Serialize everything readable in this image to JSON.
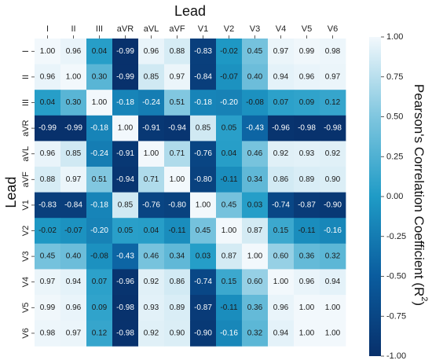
{
  "chart_data": {
    "type": "heatmap",
    "x_title": "Lead",
    "y_title": "Lead",
    "x_tick_labels": [
      "I",
      "II",
      "III",
      "aVR",
      "aVL",
      "aVF",
      "V1",
      "V2",
      "V3",
      "V4",
      "V5",
      "V6"
    ],
    "y_tick_labels": [
      "I",
      "II",
      "III",
      "aVR",
      "aVL",
      "aVF",
      "V1",
      "V2",
      "V3",
      "V4",
      "V5",
      "V6"
    ],
    "values": [
      [
        1.0,
        0.96,
        0.04,
        -0.99,
        0.96,
        0.88,
        -0.83,
        -0.02,
        0.45,
        0.97,
        0.99,
        0.98
      ],
      [
        0.96,
        1.0,
        0.3,
        -0.99,
        0.85,
        0.97,
        -0.84,
        -0.07,
        0.4,
        0.94,
        0.96,
        0.97
      ],
      [
        0.04,
        0.3,
        1.0,
        -0.18,
        -0.24,
        0.51,
        -0.18,
        -0.2,
        -0.08,
        0.07,
        0.09,
        0.12
      ],
      [
        -0.99,
        -0.99,
        -0.18,
        1.0,
        -0.91,
        -0.94,
        0.85,
        0.05,
        -0.43,
        -0.96,
        -0.98,
        -0.98
      ],
      [
        0.96,
        0.85,
        -0.24,
        -0.91,
        1.0,
        0.71,
        -0.76,
        0.04,
        0.46,
        0.92,
        0.93,
        0.92
      ],
      [
        0.88,
        0.97,
        0.51,
        -0.94,
        0.71,
        1.0,
        -0.8,
        -0.11,
        0.34,
        0.86,
        0.89,
        0.9
      ],
      [
        -0.83,
        -0.84,
        -0.18,
        0.85,
        -0.76,
        -0.8,
        1.0,
        0.45,
        0.03,
        -0.74,
        -0.87,
        -0.9
      ],
      [
        -0.02,
        -0.07,
        -0.2,
        0.05,
        0.04,
        -0.11,
        0.45,
        1.0,
        0.87,
        0.15,
        -0.11,
        -0.16
      ],
      [
        0.45,
        0.4,
        -0.08,
        -0.43,
        0.46,
        0.34,
        0.03,
        0.87,
        1.0,
        0.6,
        0.36,
        0.32
      ],
      [
        0.97,
        0.94,
        0.07,
        -0.96,
        0.92,
        0.86,
        -0.74,
        0.15,
        0.6,
        1.0,
        0.96,
        0.94
      ],
      [
        0.99,
        0.96,
        0.09,
        -0.98,
        0.93,
        0.89,
        -0.87,
        -0.11,
        0.36,
        0.96,
        1.0,
        1.0
      ],
      [
        0.98,
        0.97,
        0.12,
        -0.98,
        0.92,
        0.9,
        -0.9,
        -0.16,
        0.32,
        0.94,
        1.0,
        1.0
      ]
    ],
    "value_format_decimals": 2,
    "colorbar": {
      "title": "Pearson's Correlation Coefficient (R",
      "title_superscript": "2",
      "title_close": ")",
      "range": [
        -1.0,
        1.0
      ],
      "ticks": [
        1.0,
        0.75,
        0.5,
        0.25,
        0.0,
        -0.25,
        -0.5,
        -0.75,
        -1.0
      ],
      "tick_labels": [
        "1.00",
        "0.75",
        "0.50",
        "0.25",
        "0.00",
        "-0.25",
        "-0.50",
        "-0.75",
        "-1.00"
      ]
    },
    "colormap": {
      "stops": [
        {
          "value": -1.0,
          "color": "#08306b"
        },
        {
          "value": -0.5,
          "color": "#0a5c9e"
        },
        {
          "value": 0.0,
          "color": "#1f9bc6"
        },
        {
          "value": 0.5,
          "color": "#7fc6df"
        },
        {
          "value": 1.0,
          "color": "#f2f8fc"
        }
      ]
    },
    "text_color_dark": "#1a1a1a",
    "text_color_light": "#ffffff",
    "grid": false,
    "legend": "none"
  }
}
